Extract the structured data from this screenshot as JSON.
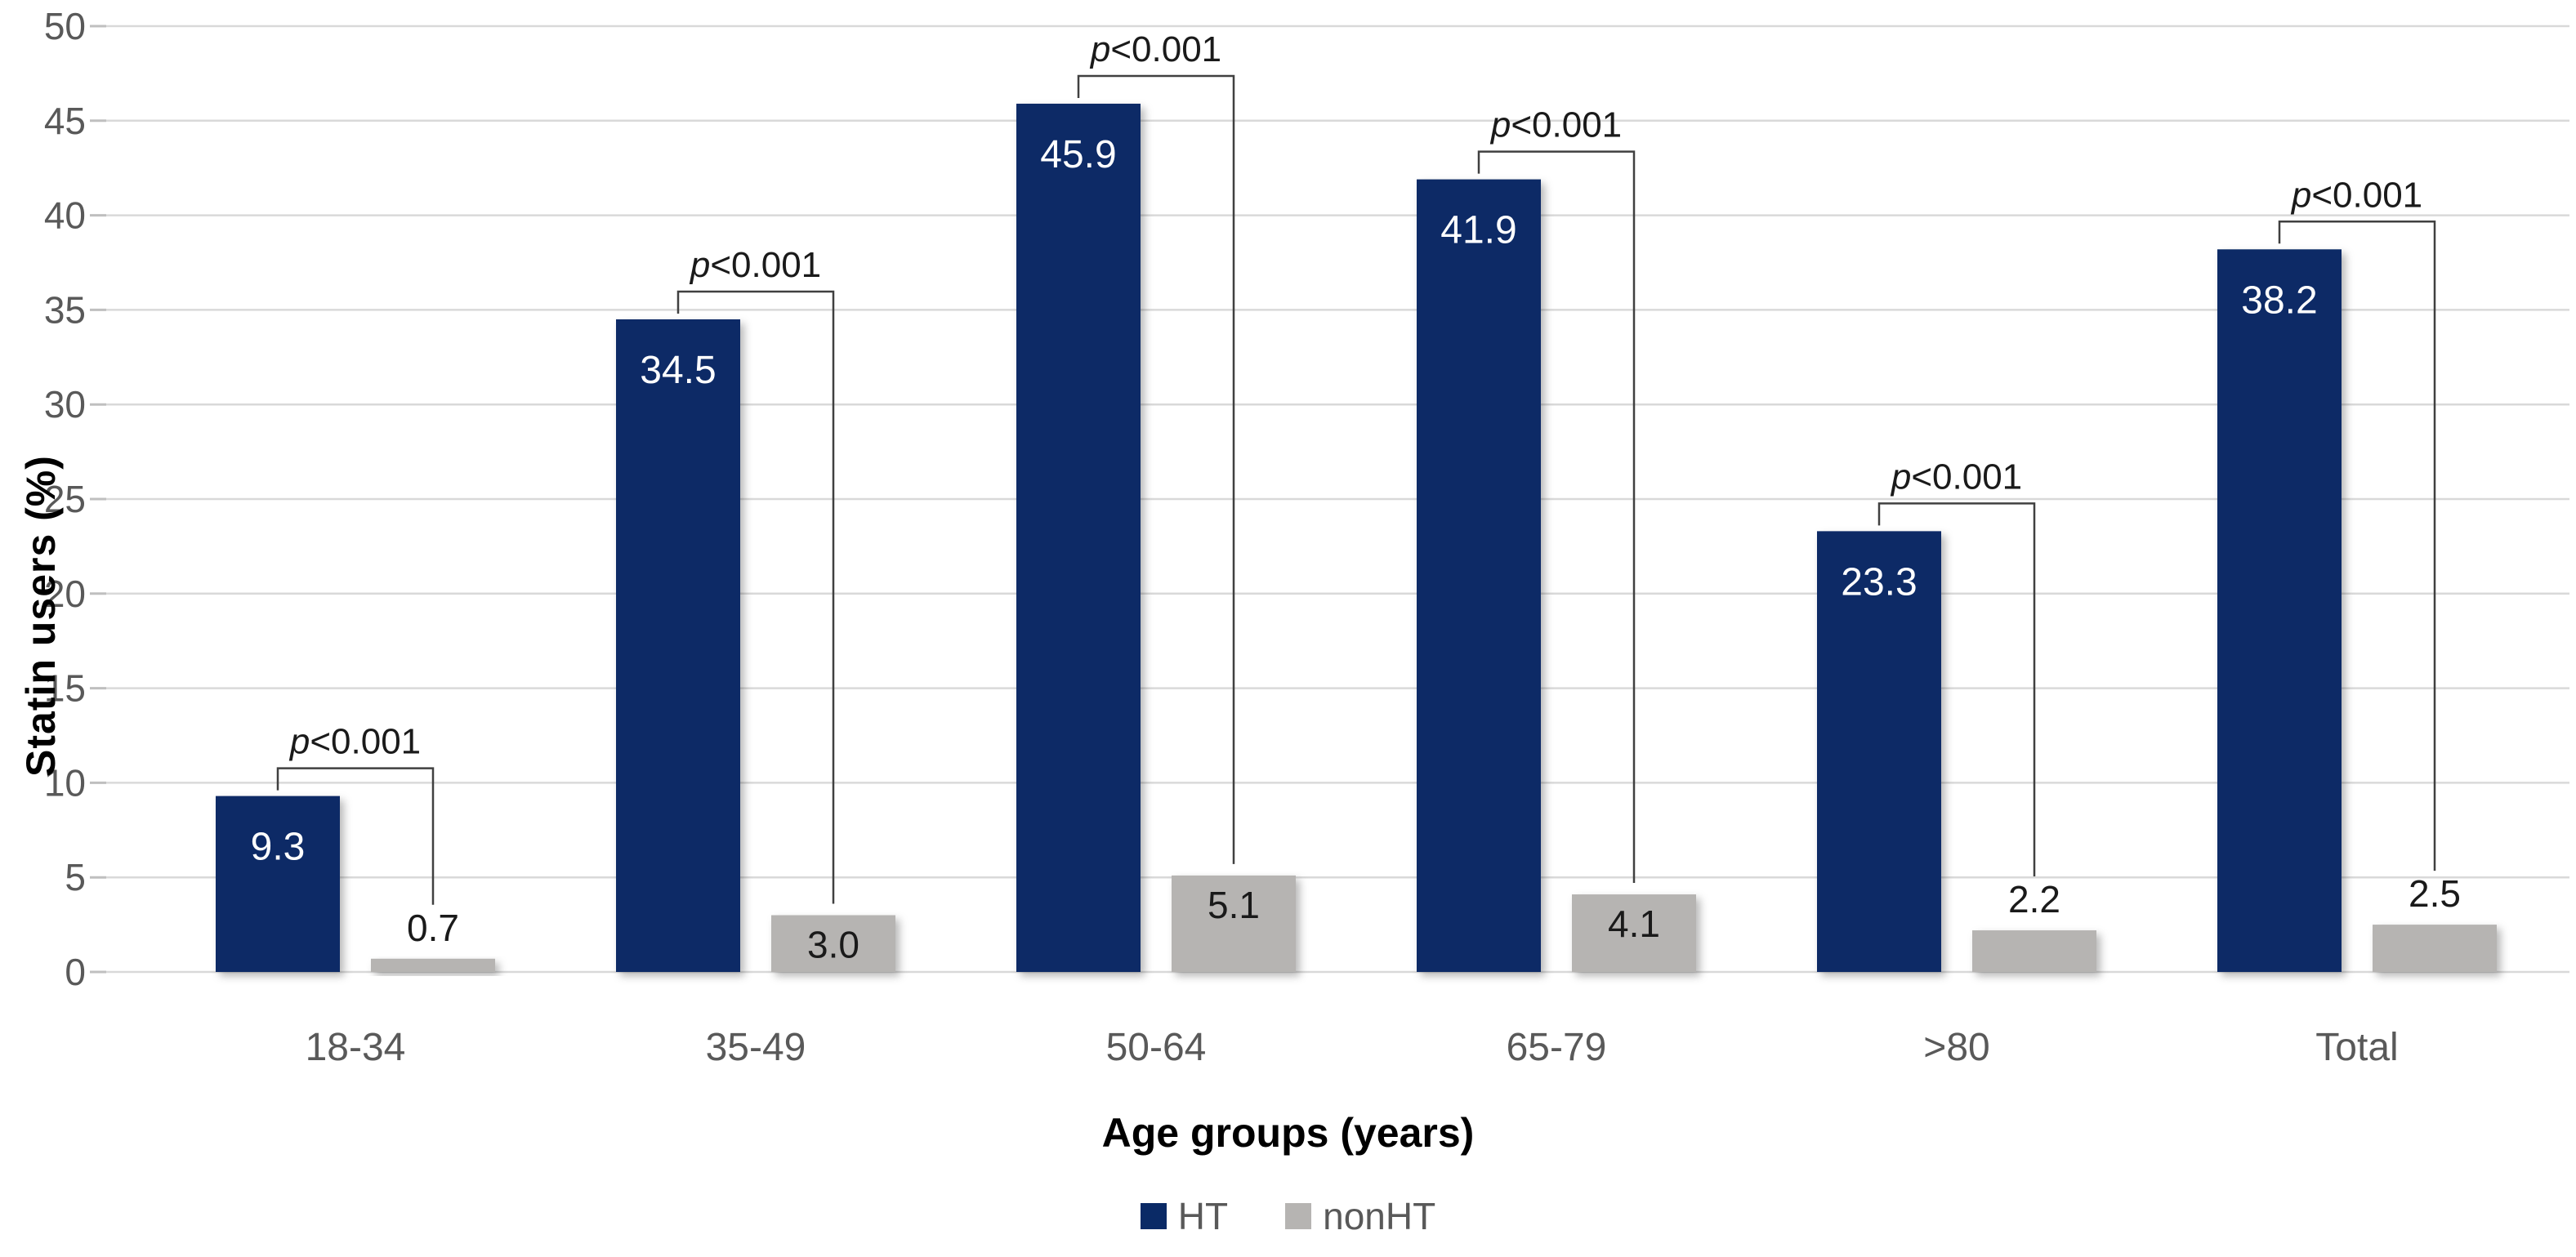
{
  "figure": {
    "y_axis_title": "Statin users (%)",
    "x_axis_title": "Age groups (years)"
  },
  "legend": {
    "items": [
      {
        "label": "HT",
        "color": "#0a2a66"
      },
      {
        "label": "nonHT",
        "color": "#b6b4b2"
      }
    ]
  },
  "colors": {
    "ht_bar": "#0a2a66",
    "nonht_bar": "#b6b4b2",
    "gridline": "#d9d9d9",
    "tick_nub": "#bfbfbf",
    "axis_text": "#595959",
    "bracket_line": "#404040",
    "p_text": "#1a1a1a",
    "ht_value_text": "#ffffff",
    "nonht_value_text": "#1a1a1a"
  },
  "chart_data": {
    "type": "bar",
    "title": "",
    "xlabel": "Age groups (years)",
    "ylabel": "Statin users (%)",
    "ylim": [
      0,
      50
    ],
    "ytick_step": 5,
    "ytick_labels": [
      "0",
      "5",
      "10",
      "15",
      "20",
      "25",
      "30",
      "35",
      "40",
      "45",
      "50"
    ],
    "grid": true,
    "legend_position": "bottom",
    "categories": [
      "18-34",
      "35-49",
      "50-64",
      "65-79",
      ">80",
      "Total"
    ],
    "series": [
      {
        "name": "HT",
        "color": "#0a2a66",
        "values": [
          9.3,
          34.5,
          45.9,
          41.9,
          23.3,
          38.2
        ],
        "value_labels": [
          "9.3",
          "34.5",
          "45.9",
          "41.9",
          "23.3",
          "38.2"
        ]
      },
      {
        "name": "nonHT",
        "color": "#b6b4b2",
        "values": [
          0.7,
          3.0,
          5.1,
          4.1,
          2.2,
          2.5
        ],
        "value_labels": [
          "0.7",
          "3.0",
          "5.1",
          "4.1",
          "2.2",
          "2.5"
        ]
      }
    ],
    "significance": [
      {
        "group": "18-34",
        "label": "p<0.001"
      },
      {
        "group": "35-49",
        "label": "p<0.001"
      },
      {
        "group": "50-64",
        "label": "p<0.001"
      },
      {
        "group": "65-79",
        "label": "p<0.001"
      },
      {
        "group": ">80",
        "label": "p<0.001"
      },
      {
        "group": "Total",
        "label": "p<0.001"
      }
    ]
  }
}
